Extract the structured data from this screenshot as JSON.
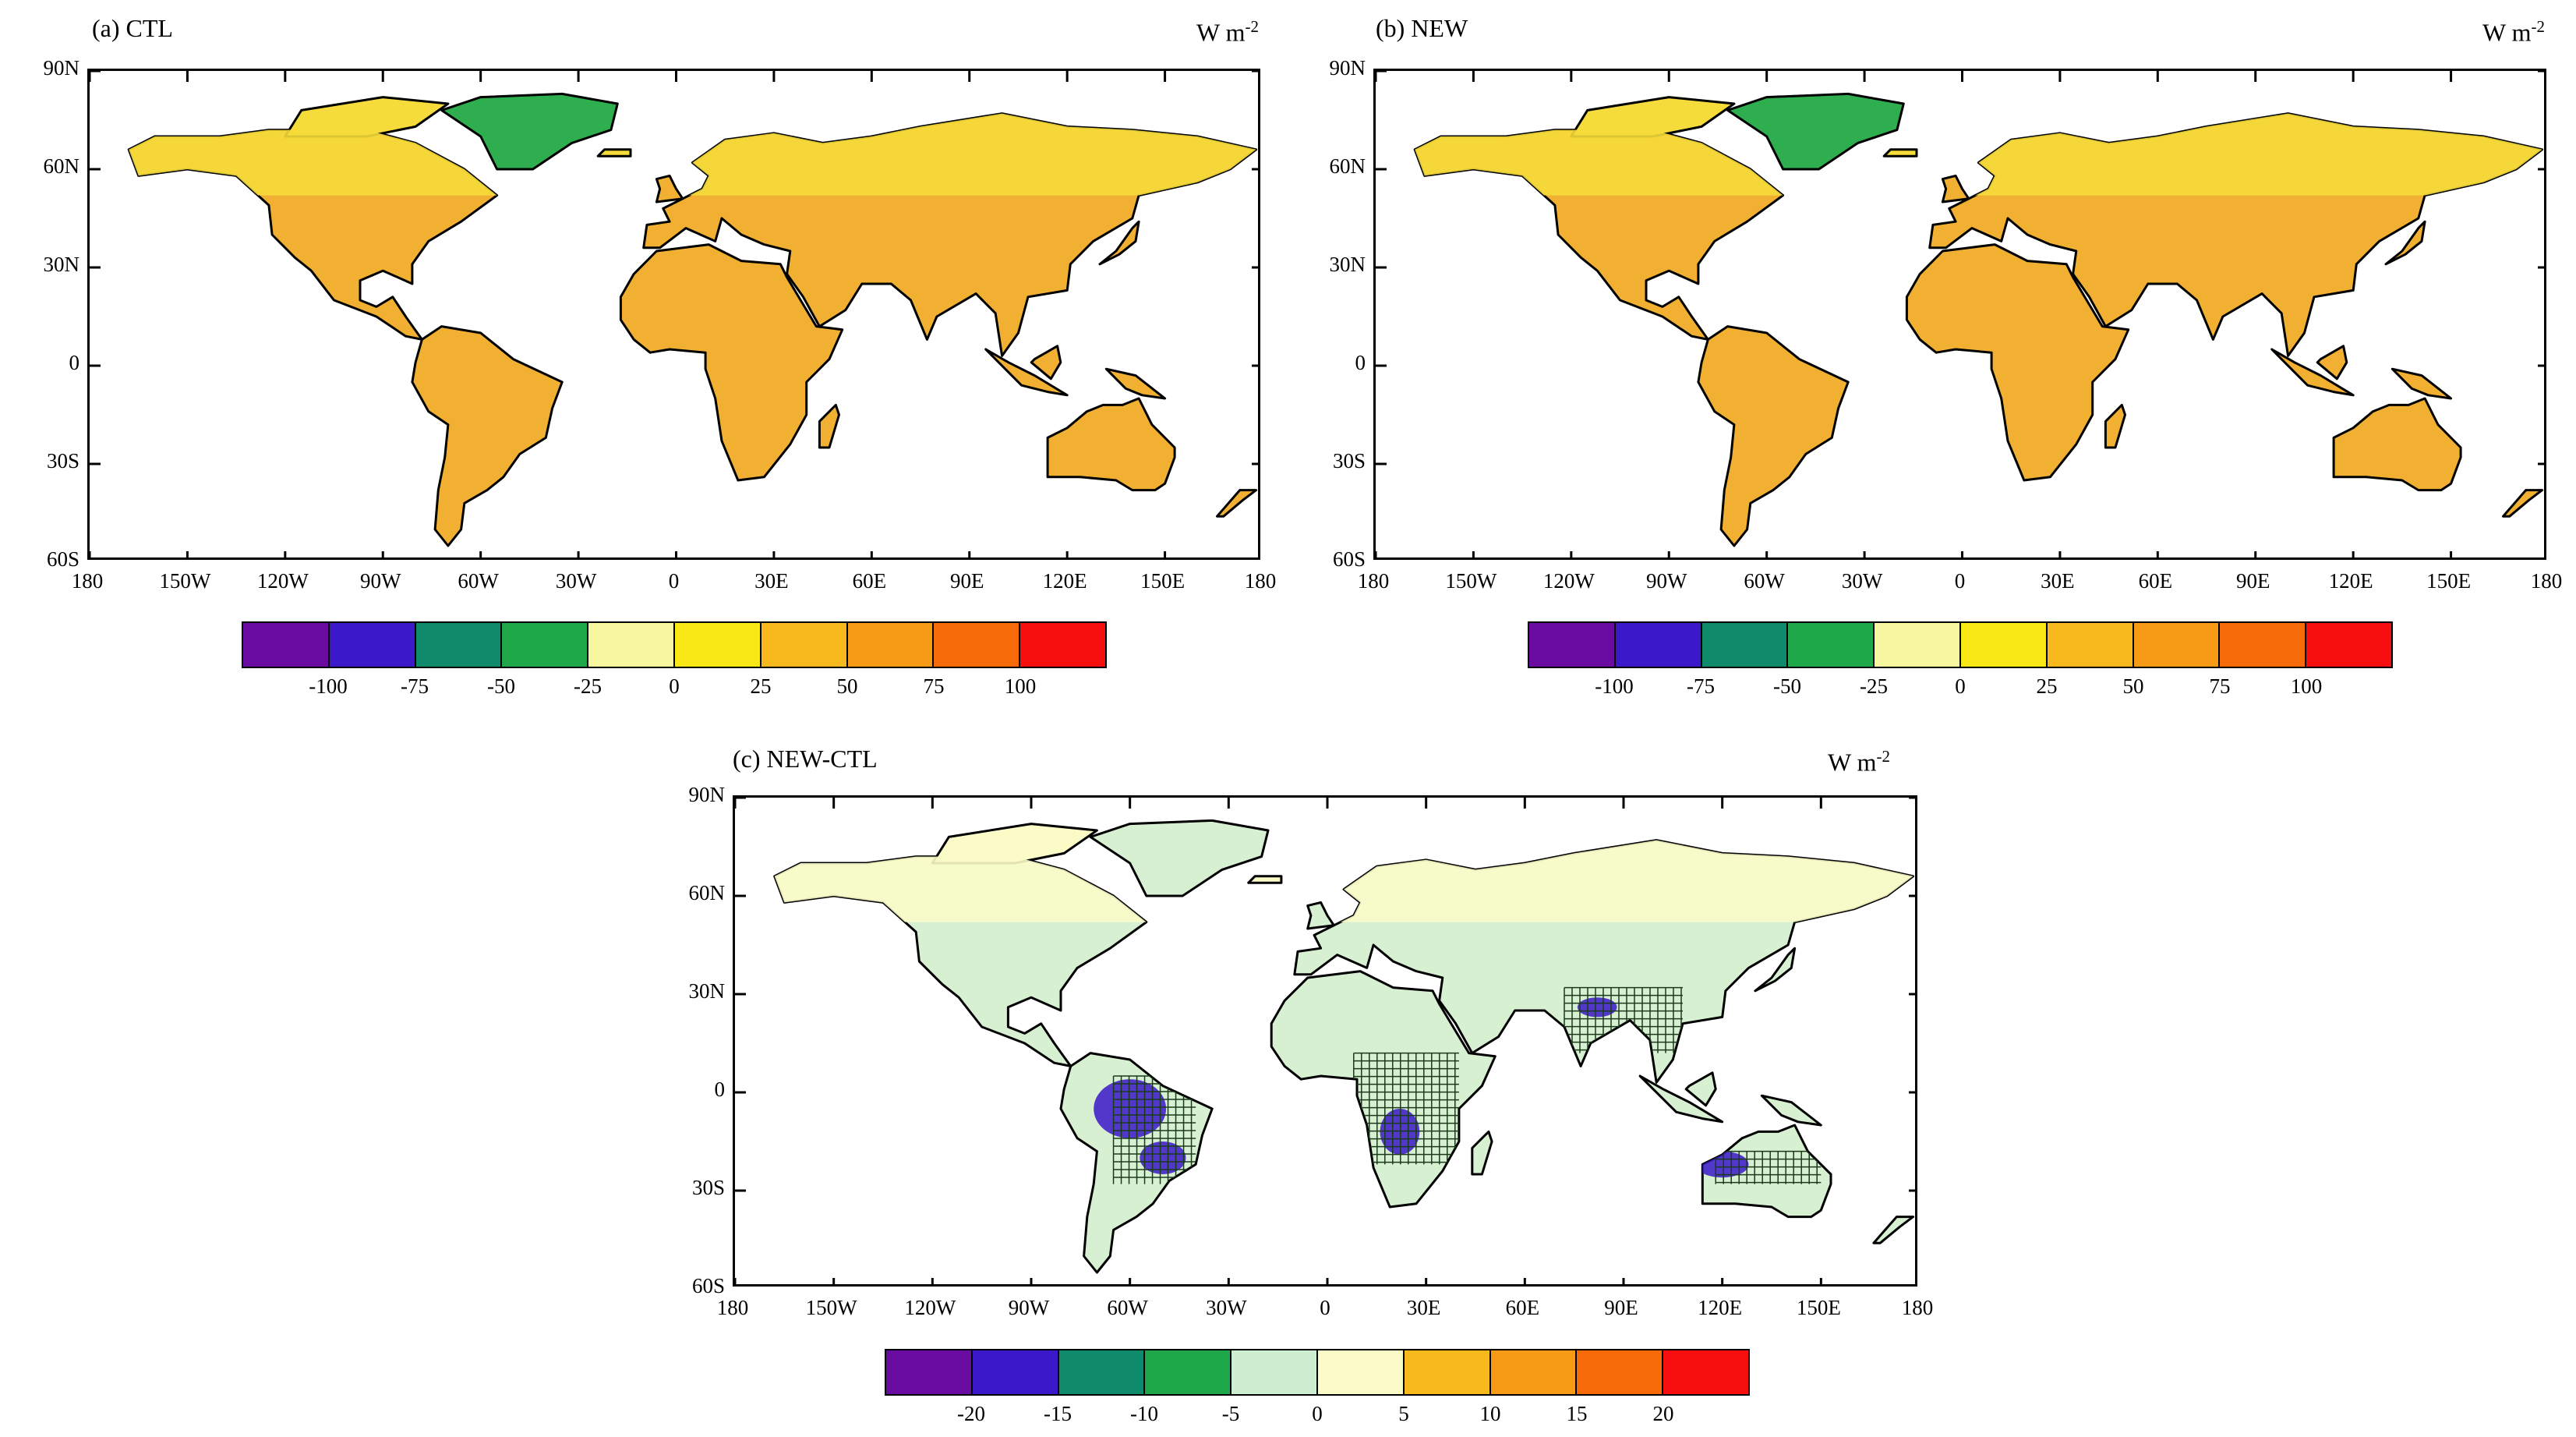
{
  "panels": [
    {
      "id": "a",
      "title": "(a) CTL",
      "unit": "W m",
      "unit_exp": "-2",
      "lat_labels": [
        "90N",
        "60N",
        "30N",
        "0",
        "30S",
        "60S"
      ],
      "lon_labels": [
        "180",
        "150W",
        "120W",
        "90W",
        "60W",
        "30W",
        "0",
        "30E",
        "60E",
        "90E",
        "120E",
        "150E",
        "180"
      ],
      "colorbar": {
        "colors": [
          "#6a0ca2",
          "#3b18c9",
          "#0f8a6b",
          "#1ea84a",
          "#f7f7a0",
          "#f7e816",
          "#f7b91c",
          "#f79b16",
          "#f76a0a",
          "#f70f0f"
        ],
        "labels": [
          "-100",
          "-75",
          "-50",
          "-25",
          "0",
          "25",
          "50",
          "75",
          "100"
        ]
      }
    },
    {
      "id": "b",
      "title": "(b) NEW",
      "unit": "W m",
      "unit_exp": "-2",
      "lat_labels": [
        "90N",
        "60N",
        "30N",
        "0",
        "30S",
        "60S"
      ],
      "lon_labels": [
        "180",
        "150W",
        "120W",
        "90W",
        "60W",
        "30W",
        "0",
        "30E",
        "60E",
        "90E",
        "120E",
        "150E",
        "180"
      ],
      "colorbar": {
        "colors": [
          "#6a0ca2",
          "#3b18c9",
          "#0f8a6b",
          "#1ea84a",
          "#f7f7a0",
          "#f7e816",
          "#f7b91c",
          "#f79b16",
          "#f76a0a",
          "#f70f0f"
        ],
        "labels": [
          "-100",
          "-75",
          "-50",
          "-25",
          "0",
          "25",
          "50",
          "75",
          "100"
        ]
      }
    },
    {
      "id": "c",
      "title": "(c) NEW-CTL",
      "unit": "W m",
      "unit_exp": "-2",
      "lat_labels": [
        "90N",
        "60N",
        "30N",
        "0",
        "30S",
        "60S"
      ],
      "lon_labels": [
        "180",
        "150W",
        "120W",
        "90W",
        "60W",
        "30W",
        "0",
        "30E",
        "60E",
        "90E",
        "120E",
        "150E",
        "180"
      ],
      "colorbar": {
        "colors": [
          "#6a0ca2",
          "#3b18c9",
          "#0f8a6b",
          "#1ea84a",
          "#cdeed0",
          "#fbfbc8",
          "#f7b91c",
          "#f79b16",
          "#f76a0a",
          "#f70f0f"
        ],
        "labels": [
          "-20",
          "-15",
          "-10",
          "-5",
          "0",
          "5",
          "10",
          "15",
          "20"
        ]
      }
    }
  ],
  "map_fill": {
    "a": {
      "land": "#f2b033",
      "highlat": "#f5dc3a",
      "greenland": "#2fae4f"
    },
    "b": {
      "land": "#f2b033",
      "highlat": "#f5dc3a",
      "greenland": "#2fae4f"
    },
    "c": {
      "land": "#d7f0d2",
      "highlat": "#fbfbc8",
      "negative": "#3b18c9"
    }
  }
}
